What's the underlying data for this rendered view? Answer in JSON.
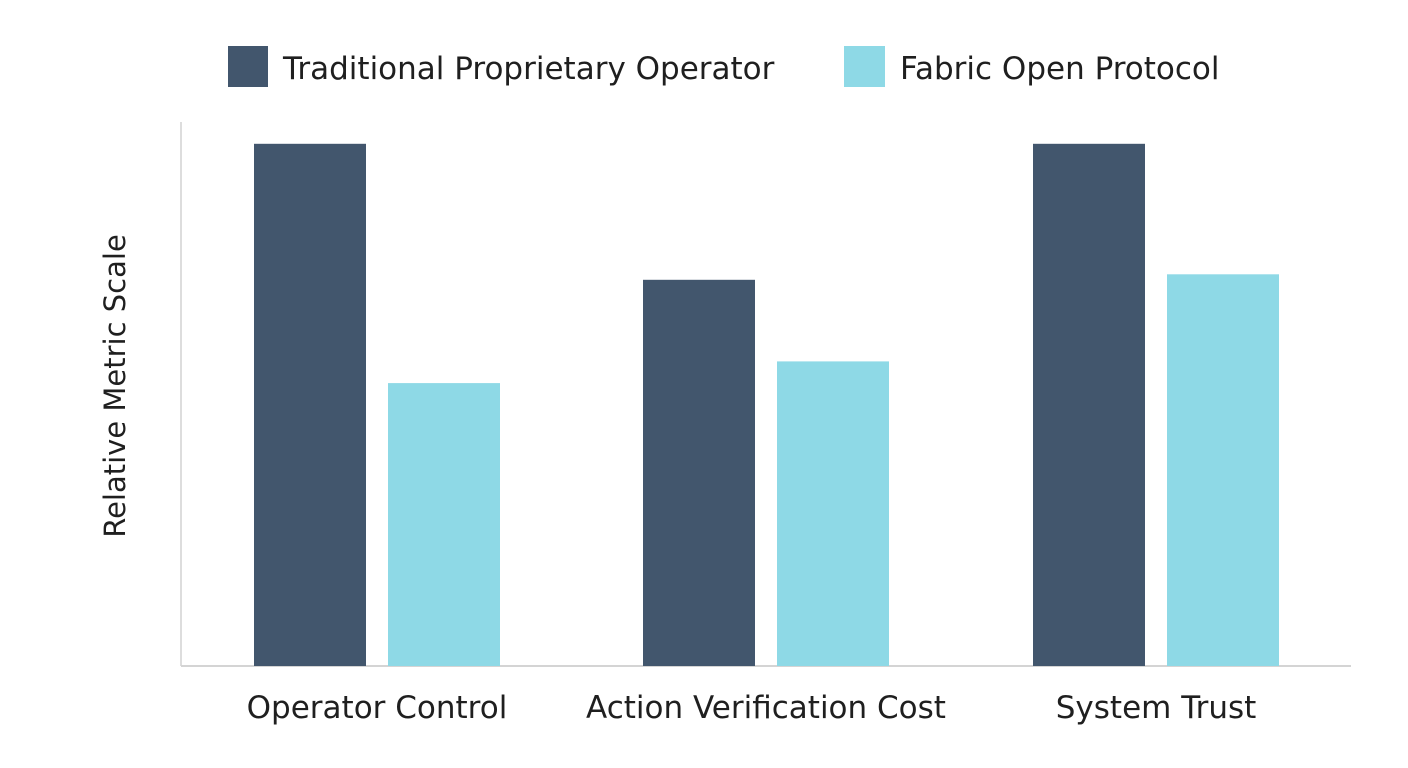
{
  "chart_data": {
    "type": "bar",
    "title": "",
    "xlabel": "",
    "ylabel": "Relative Metric Scale",
    "categories": [
      "Operator Control",
      "Action Verification Cost",
      "System Trust"
    ],
    "series": [
      {
        "name": "Traditional Proprietary Operator",
        "color": "#42566d",
        "values": [
          9.6,
          7.1,
          9.6
        ]
      },
      {
        "name": "Fabric Open Protocol",
        "color": "#8ed9e6",
        "values": [
          5.2,
          5.6,
          7.2
        ]
      }
    ],
    "ylim": [
      0,
      10
    ],
    "grid": false,
    "legend_position": "top"
  }
}
